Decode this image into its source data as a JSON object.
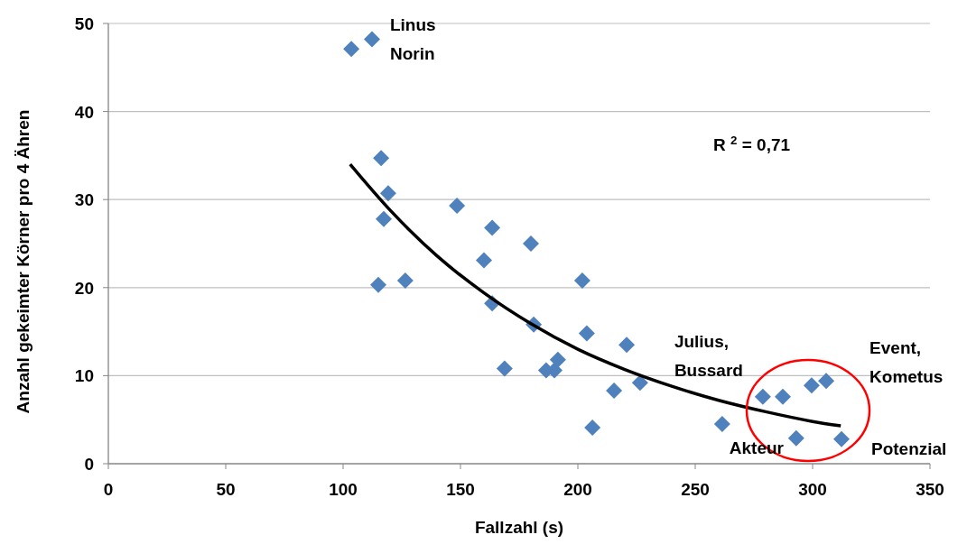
{
  "chart_data": {
    "type": "scatter",
    "xlabel": "Fallzahl (s)",
    "ylabel": "Anzahl gekeimter Körner pro 4 Ähren",
    "xlim": [
      0,
      350
    ],
    "ylim": [
      0,
      50
    ],
    "xticks": [
      0,
      50,
      100,
      150,
      200,
      250,
      300,
      350
    ],
    "yticks": [
      0,
      10,
      20,
      30,
      40,
      50
    ],
    "grid": "y",
    "series": [
      {
        "marker": "diamond",
        "color": "#4f81bd",
        "x": [
          103.5,
          112.3,
          116.2,
          119.2,
          117.3,
          115,
          126.5,
          148.5,
          163.5,
          160,
          180,
          163.5,
          181.2,
          168.8,
          201.9,
          203.8,
          220.8,
          186.5,
          190,
          191.5,
          215.4,
          226.5,
          206.2,
          261.5,
          278.8,
          287.3,
          299.6,
          305.8,
          293,
          312.3
        ],
        "values": [
          47.1,
          48.2,
          34.7,
          30.7,
          27.8,
          20.3,
          20.8,
          29.3,
          26.8,
          23.1,
          25,
          18.2,
          15.8,
          10.8,
          20.8,
          14.8,
          13.5,
          10.6,
          10.6,
          11.8,
          8.3,
          9.2,
          4.1,
          4.5,
          7.6,
          7.6,
          8.9,
          9.4,
          2.9,
          2.8
        ]
      },
      {
        "type": "line",
        "color": "#000000",
        "x": [
          103,
          120,
          140,
          160,
          180,
          200,
          220,
          240,
          260,
          280,
          300,
          312
        ],
        "values": [
          34,
          28.8,
          23.6,
          19.4,
          15.9,
          13,
          10.7,
          8.8,
          7.2,
          5.9,
          4.8,
          4.3
        ]
      }
    ],
    "annotations": [
      {
        "text": "Linus\nNorin",
        "x": 112.3,
        "y": 48.2
      },
      "R $^{2}$ = 0,71",
      {
        "text": "Julius,\nBussard",
        "x": 278.8,
        "y": 7.6
      },
      {
        "text": "Event,\nKometus",
        "x": 305.8,
        "y": 9.4
      },
      {
        "text": "Akteur",
        "x": 293,
        "y": 2.9
      },
      {
        "text": "Potenzial",
        "x": 312.3,
        "y": 2.8
      }
    ]
  }
}
